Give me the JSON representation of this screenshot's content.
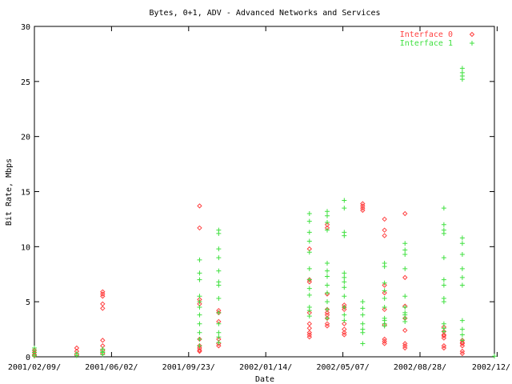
{
  "chart_data": {
    "type": "scatter",
    "title": "Bytes, 0+1, ADV - Advanced Networks and Services",
    "xlabel": "Date",
    "ylabel": "Bit Rate, Mbps",
    "xlim": [
      "2001-02-09",
      "2002-12-15"
    ],
    "ylim": [
      0,
      30
    ],
    "yticks": [
      0,
      5,
      10,
      15,
      20,
      25,
      30
    ],
    "xticks": [
      {
        "date": "2001-02-09",
        "label": "2001/02/09/"
      },
      {
        "date": "2001-06-02",
        "label": "2001/06/02/"
      },
      {
        "date": "2001-09-23",
        "label": "2001/09/23/"
      },
      {
        "date": "2002-01-14",
        "label": "2002/01/14/"
      },
      {
        "date": "2002-05-07",
        "label": "2002/05/07/"
      },
      {
        "date": "2002-08-28",
        "label": "2002/08/28/"
      },
      {
        "date": "2002-12-19",
        "label": "2002/12/"
      }
    ],
    "grid": false,
    "legend_position": "top-right",
    "series": [
      {
        "name": "Interface 0",
        "color": "#ff4040",
        "marker": "diamond",
        "points": [
          [
            "2001-02-09",
            0.6
          ],
          [
            "2001-02-09",
            0.4
          ],
          [
            "2001-02-09",
            0.2
          ],
          [
            "2001-02-09",
            0.1
          ],
          [
            "2001-04-12",
            0.8
          ],
          [
            "2001-04-12",
            0.5
          ],
          [
            "2001-04-12",
            0.2
          ],
          [
            "2001-05-20",
            5.9
          ],
          [
            "2001-05-20",
            5.7
          ],
          [
            "2001-05-20",
            5.5
          ],
          [
            "2001-05-20",
            4.8
          ],
          [
            "2001-05-20",
            4.4
          ],
          [
            "2001-05-20",
            1.5
          ],
          [
            "2001-05-20",
            1.0
          ],
          [
            "2001-05-20",
            0.6
          ],
          [
            "2001-05-20",
            0.3
          ],
          [
            "2001-10-09",
            13.7
          ],
          [
            "2001-10-09",
            11.7
          ],
          [
            "2001-10-09",
            5.2
          ],
          [
            "2001-10-09",
            4.8
          ],
          [
            "2001-10-09",
            1.6
          ],
          [
            "2001-10-09",
            1.0
          ],
          [
            "2001-10-09",
            0.8
          ],
          [
            "2001-10-09",
            0.6
          ],
          [
            "2001-10-09",
            0.5
          ],
          [
            "2001-11-06",
            4.2
          ],
          [
            "2001-11-06",
            4.0
          ],
          [
            "2001-11-06",
            3.2
          ],
          [
            "2001-11-06",
            1.6
          ],
          [
            "2001-11-06",
            1.2
          ],
          [
            "2001-11-06",
            1.0
          ],
          [
            "2002-03-19",
            9.8
          ],
          [
            "2002-03-19",
            7.0
          ],
          [
            "2002-03-19",
            6.8
          ],
          [
            "2002-03-19",
            4.0
          ],
          [
            "2002-03-19",
            3.0
          ],
          [
            "2002-03-19",
            2.6
          ],
          [
            "2002-03-19",
            2.2
          ],
          [
            "2002-03-19",
            2.0
          ],
          [
            "2002-03-19",
            1.8
          ],
          [
            "2002-04-14",
            12.0
          ],
          [
            "2002-04-14",
            11.7
          ],
          [
            "2002-04-14",
            5.7
          ],
          [
            "2002-04-14",
            4.3
          ],
          [
            "2002-04-14",
            4.0
          ],
          [
            "2002-04-14",
            3.8
          ],
          [
            "2002-04-14",
            3.5
          ],
          [
            "2002-04-14",
            3.0
          ],
          [
            "2002-04-14",
            2.8
          ],
          [
            "2002-05-09",
            4.7
          ],
          [
            "2002-05-09",
            4.5
          ],
          [
            "2002-05-09",
            4.3
          ],
          [
            "2002-05-09",
            3.0
          ],
          [
            "2002-05-09",
            2.5
          ],
          [
            "2002-05-09",
            2.2
          ],
          [
            "2002-05-09",
            2.0
          ],
          [
            "2002-06-05",
            13.9
          ],
          [
            "2002-06-05",
            13.7
          ],
          [
            "2002-06-05",
            13.5
          ],
          [
            "2002-06-05",
            13.3
          ],
          [
            "2002-07-07",
            12.5
          ],
          [
            "2002-07-07",
            11.5
          ],
          [
            "2002-07-07",
            11.0
          ],
          [
            "2002-07-07",
            6.5
          ],
          [
            "2002-07-07",
            5.8
          ],
          [
            "2002-07-07",
            4.3
          ],
          [
            "2002-07-07",
            2.9
          ],
          [
            "2002-07-07",
            1.6
          ],
          [
            "2002-07-07",
            1.4
          ],
          [
            "2002-07-07",
            1.2
          ],
          [
            "2002-08-06",
            13.0
          ],
          [
            "2002-08-06",
            7.2
          ],
          [
            "2002-08-06",
            4.6
          ],
          [
            "2002-08-06",
            3.5
          ],
          [
            "2002-08-06",
            2.4
          ],
          [
            "2002-08-06",
            1.2
          ],
          [
            "2002-08-06",
            1.0
          ],
          [
            "2002-08-06",
            0.8
          ],
          [
            "2002-10-02",
            2.7
          ],
          [
            "2002-10-02",
            2.3
          ],
          [
            "2002-10-02",
            2.0
          ],
          [
            "2002-10-02",
            1.9
          ],
          [
            "2002-10-02",
            1.7
          ],
          [
            "2002-10-02",
            1.0
          ],
          [
            "2002-10-02",
            0.8
          ],
          [
            "2002-10-29",
            1.5
          ],
          [
            "2002-10-29",
            1.3
          ],
          [
            "2002-10-29",
            1.2
          ],
          [
            "2002-10-29",
            1.0
          ],
          [
            "2002-10-29",
            0.5
          ],
          [
            "2002-10-29",
            0.3
          ]
        ]
      },
      {
        "name": "Interface 1",
        "color": "#40e040",
        "marker": "plus",
        "points": [
          [
            "2001-02-09",
            0.8
          ],
          [
            "2001-02-09",
            0.6
          ],
          [
            "2001-02-09",
            0.4
          ],
          [
            "2001-02-09",
            0.2
          ],
          [
            "2001-02-09",
            0.05
          ],
          [
            "2001-04-12",
            0.3
          ],
          [
            "2001-04-12",
            0.1
          ],
          [
            "2001-05-20",
            0.7
          ],
          [
            "2001-05-20",
            0.5
          ],
          [
            "2001-05-20",
            0.4
          ],
          [
            "2001-05-20",
            0.2
          ],
          [
            "2001-10-09",
            8.8
          ],
          [
            "2001-10-09",
            7.6
          ],
          [
            "2001-10-09",
            7.0
          ],
          [
            "2001-10-09",
            5.5
          ],
          [
            "2001-10-09",
            5.0
          ],
          [
            "2001-10-09",
            4.5
          ],
          [
            "2001-10-09",
            3.8
          ],
          [
            "2001-10-09",
            3.0
          ],
          [
            "2001-10-09",
            2.2
          ],
          [
            "2001-10-09",
            1.6
          ],
          [
            "2001-10-09",
            1.0
          ],
          [
            "2001-11-06",
            11.5
          ],
          [
            "2001-11-06",
            11.2
          ],
          [
            "2001-11-06",
            9.8
          ],
          [
            "2001-11-06",
            9.0
          ],
          [
            "2001-11-06",
            7.8
          ],
          [
            "2001-11-06",
            6.8
          ],
          [
            "2001-11-06",
            6.5
          ],
          [
            "2001-11-06",
            5.3
          ],
          [
            "2001-11-06",
            4.0
          ],
          [
            "2001-11-06",
            3.0
          ],
          [
            "2001-11-06",
            2.2
          ],
          [
            "2001-11-06",
            1.8
          ],
          [
            "2001-11-06",
            1.3
          ],
          [
            "2002-03-19",
            13.0
          ],
          [
            "2002-03-19",
            12.3
          ],
          [
            "2002-03-19",
            11.3
          ],
          [
            "2002-03-19",
            10.5
          ],
          [
            "2002-03-19",
            9.5
          ],
          [
            "2002-03-19",
            8.0
          ],
          [
            "2002-03-19",
            7.0
          ],
          [
            "2002-03-19",
            6.2
          ],
          [
            "2002-03-19",
            5.6
          ],
          [
            "2002-03-19",
            4.5
          ],
          [
            "2002-03-19",
            4.2
          ],
          [
            "2002-03-19",
            3.7
          ],
          [
            "2002-04-14",
            13.2
          ],
          [
            "2002-04-14",
            12.8
          ],
          [
            "2002-04-14",
            12.2
          ],
          [
            "2002-04-14",
            11.5
          ],
          [
            "2002-04-14",
            8.5
          ],
          [
            "2002-04-14",
            7.8
          ],
          [
            "2002-04-14",
            7.3
          ],
          [
            "2002-04-14",
            6.5
          ],
          [
            "2002-04-14",
            5.8
          ],
          [
            "2002-04-14",
            5.0
          ],
          [
            "2002-04-14",
            4.3
          ],
          [
            "2002-04-14",
            3.5
          ],
          [
            "2002-05-09",
            14.2
          ],
          [
            "2002-05-09",
            13.5
          ],
          [
            "2002-05-09",
            11.3
          ],
          [
            "2002-05-09",
            11.0
          ],
          [
            "2002-05-09",
            7.6
          ],
          [
            "2002-05-09",
            7.2
          ],
          [
            "2002-05-09",
            6.8
          ],
          [
            "2002-05-09",
            6.3
          ],
          [
            "2002-05-09",
            5.5
          ],
          [
            "2002-05-09",
            4.5
          ],
          [
            "2002-05-09",
            3.8
          ],
          [
            "2002-05-09",
            3.3
          ],
          [
            "2002-06-05",
            5.0
          ],
          [
            "2002-06-05",
            4.4
          ],
          [
            "2002-06-05",
            3.8
          ],
          [
            "2002-06-05",
            3.0
          ],
          [
            "2002-06-05",
            2.5
          ],
          [
            "2002-06-05",
            2.2
          ],
          [
            "2002-06-05",
            1.2
          ],
          [
            "2002-07-07",
            8.5
          ],
          [
            "2002-07-07",
            8.2
          ],
          [
            "2002-07-07",
            6.7
          ],
          [
            "2002-07-07",
            6.0
          ],
          [
            "2002-07-07",
            5.3
          ],
          [
            "2002-07-07",
            4.5
          ],
          [
            "2002-07-07",
            3.5
          ],
          [
            "2002-07-07",
            3.3
          ],
          [
            "2002-07-07",
            3.0
          ],
          [
            "2002-07-07",
            2.8
          ],
          [
            "2002-08-06",
            10.3
          ],
          [
            "2002-08-06",
            9.7
          ],
          [
            "2002-08-06",
            9.3
          ],
          [
            "2002-08-06",
            8.0
          ],
          [
            "2002-08-06",
            5.5
          ],
          [
            "2002-08-06",
            4.5
          ],
          [
            "2002-08-06",
            4.0
          ],
          [
            "2002-08-06",
            3.8
          ],
          [
            "2002-08-06",
            3.5
          ],
          [
            "2002-08-06",
            3.2
          ],
          [
            "2002-10-02",
            13.5
          ],
          [
            "2002-10-02",
            12.0
          ],
          [
            "2002-10-02",
            11.5
          ],
          [
            "2002-10-02",
            11.2
          ],
          [
            "2002-10-02",
            9.0
          ],
          [
            "2002-10-02",
            7.0
          ],
          [
            "2002-10-02",
            6.5
          ],
          [
            "2002-10-02",
            5.3
          ],
          [
            "2002-10-02",
            5.0
          ],
          [
            "2002-10-02",
            3.0
          ],
          [
            "2002-10-02",
            2.6
          ],
          [
            "2002-10-02",
            2.3
          ],
          [
            "2002-10-29",
            26.2
          ],
          [
            "2002-10-29",
            25.8
          ],
          [
            "2002-10-29",
            25.5
          ],
          [
            "2002-10-29",
            25.2
          ],
          [
            "2002-10-29",
            10.8
          ],
          [
            "2002-10-29",
            10.3
          ],
          [
            "2002-10-29",
            9.3
          ],
          [
            "2002-10-29",
            8.0
          ],
          [
            "2002-10-29",
            7.2
          ],
          [
            "2002-10-29",
            6.5
          ],
          [
            "2002-10-29",
            3.3
          ],
          [
            "2002-10-29",
            2.5
          ],
          [
            "2002-10-29",
            2.0
          ],
          [
            "2002-10-29",
            1.5
          ],
          [
            "2002-12-15",
            0.05
          ]
        ]
      }
    ]
  }
}
